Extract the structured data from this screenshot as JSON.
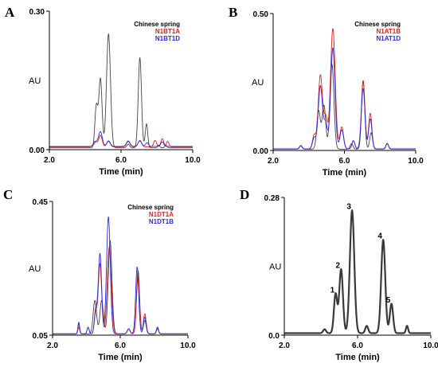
{
  "colors": {
    "Chinese spring": "#444444",
    "N1BT1A": "#e02020",
    "N1BT1D": "#2a2ae0",
    "N1AT1B": "#e02020",
    "N1AT1D": "#2a2ae0",
    "N1DT1A": "#e02020",
    "N1DT1B": "#2a2ae0"
  },
  "chart_data": [
    {
      "panel": "A",
      "type": "line",
      "xlabel": "Time (min)",
      "ylabel": "AU",
      "xlim": [
        2.0,
        10.0
      ],
      "ylim": [
        0.0,
        0.3
      ],
      "xticks": [
        "2.0",
        "6.0",
        "10.0"
      ],
      "yticks": [
        "0.00",
        "0.30"
      ],
      "legend": [
        "Chinese spring",
        "N1BT1A",
        "N1BT1D"
      ],
      "series": [
        {
          "name": "Chinese spring",
          "baseline": 0.004,
          "peaks": [
            [
              4.62,
              0.09,
              0.08
            ],
            [
              4.85,
              0.15,
              0.09
            ],
            [
              5.3,
              0.247,
              0.11
            ],
            [
              6.4,
              0.008,
              0.08
            ],
            [
              7.05,
              0.196,
              0.09
            ],
            [
              7.42,
              0.052,
              0.07
            ],
            [
              8.1,
              0.006,
              0.06
            ],
            [
              8.5,
              0.006,
              0.06
            ]
          ]
        },
        {
          "name": "N1BT1A",
          "baseline": 0.006,
          "peaks": [
            [
              4.55,
              0.012,
              0.1
            ],
            [
              4.85,
              0.025,
              0.1
            ],
            [
              5.3,
              0.012,
              0.1
            ],
            [
              6.4,
              0.012,
              0.1
            ],
            [
              7.05,
              0.014,
              0.1
            ],
            [
              7.9,
              0.014,
              0.08
            ],
            [
              8.3,
              0.018,
              0.08
            ],
            [
              8.6,
              0.012,
              0.07
            ]
          ]
        },
        {
          "name": "N1BT1D",
          "baseline": 0.007,
          "peaks": [
            [
              4.6,
              0.01,
              0.1
            ],
            [
              4.85,
              0.032,
              0.1
            ],
            [
              5.3,
              0.012,
              0.1
            ],
            [
              6.4,
              0.012,
              0.1
            ],
            [
              7.05,
              0.012,
              0.1
            ],
            [
              7.45,
              0.008,
              0.08
            ],
            [
              8.3,
              0.01,
              0.08
            ]
          ]
        }
      ]
    },
    {
      "panel": "B",
      "type": "line",
      "xlabel": "Time (min)",
      "ylabel": "AU",
      "xlim": [
        2.0,
        10.0
      ],
      "ylim": [
        0.0,
        0.5
      ],
      "xticks": [
        "2.0",
        "6.0",
        "10.0"
      ],
      "yticks": [
        "0.00",
        "0.50"
      ],
      "legend": [
        "Chinese spring",
        "N1AT1B",
        "N1AT1D"
      ],
      "series": [
        {
          "name": "Chinese spring",
          "baseline": 0.005,
          "peaks": [
            [
              3.55,
              0.012,
              0.07
            ],
            [
              4.55,
              0.14,
              0.1
            ],
            [
              4.85,
              0.16,
              0.1
            ],
            [
              5.3,
              0.31,
              0.11
            ],
            [
              6.4,
              0.02,
              0.08
            ],
            [
              7.05,
              0.25,
              0.09
            ],
            [
              7.5,
              0.06,
              0.08
            ],
            [
              8.4,
              0.02,
              0.07
            ]
          ]
        },
        {
          "name": "N1AT1B",
          "baseline": 0.006,
          "peaks": [
            [
              3.55,
              0.012,
              0.07
            ],
            [
              4.3,
              0.05,
              0.09
            ],
            [
              4.65,
              0.27,
              0.12
            ],
            [
              4.95,
              0.11,
              0.1
            ],
            [
              5.35,
              0.44,
              0.13
            ],
            [
              5.85,
              0.08,
              0.1
            ],
            [
              6.5,
              0.03,
              0.08
            ],
            [
              7.05,
              0.25,
              0.1
            ],
            [
              7.45,
              0.13,
              0.09
            ],
            [
              8.4,
              0.02,
              0.07
            ]
          ]
        },
        {
          "name": "N1AT1D",
          "baseline": 0.006,
          "peaks": [
            [
              3.55,
              0.012,
              0.07
            ],
            [
              4.3,
              0.04,
              0.09
            ],
            [
              4.65,
              0.23,
              0.12
            ],
            [
              4.95,
              0.09,
              0.1
            ],
            [
              5.35,
              0.37,
              0.12
            ],
            [
              5.85,
              0.07,
              0.1
            ],
            [
              6.5,
              0.03,
              0.08
            ],
            [
              7.05,
              0.22,
              0.1
            ],
            [
              7.45,
              0.11,
              0.09
            ],
            [
              8.4,
              0.02,
              0.07
            ]
          ]
        }
      ]
    },
    {
      "panel": "C",
      "type": "line",
      "xlabel": "Time (min)",
      "ylabel": "AU",
      "xlim": [
        2.0,
        10.0
      ],
      "ylim": [
        0.05,
        0.45
      ],
      "xticks": [
        "2.0",
        "6.0",
        "10.0"
      ],
      "yticks": [
        "0.05",
        "0.45"
      ],
      "legend": [
        "Chinese spring",
        "N1DT1A",
        "N1DT1B"
      ],
      "series": [
        {
          "name": "Chinese spring",
          "baseline": 0.054,
          "peaks": [
            [
              3.55,
              0.03,
              0.05
            ],
            [
              4.5,
              0.1,
              0.1
            ],
            [
              4.9,
              0.1,
              0.1
            ],
            [
              5.4,
              0.28,
              0.11
            ],
            [
              6.5,
              0.015,
              0.08
            ],
            [
              7.05,
              0.19,
              0.09
            ],
            [
              7.45,
              0.04,
              0.08
            ],
            [
              8.2,
              0.015,
              0.06
            ]
          ]
        },
        {
          "name": "N1DT1A",
          "baseline": 0.054,
          "peaks": [
            [
              3.55,
              0.02,
              0.05
            ],
            [
              4.1,
              0.02,
              0.06
            ],
            [
              4.55,
              0.06,
              0.08
            ],
            [
              4.8,
              0.21,
              0.1
            ],
            [
              5.35,
              0.26,
              0.12
            ],
            [
              6.5,
              0.015,
              0.08
            ],
            [
              7.05,
              0.17,
              0.09
            ],
            [
              7.45,
              0.06,
              0.08
            ],
            [
              8.2,
              0.02,
              0.06
            ]
          ]
        },
        {
          "name": "N1DT1B",
          "baseline": 0.054,
          "peaks": [
            [
              3.55,
              0.035,
              0.05
            ],
            [
              4.1,
              0.02,
              0.06
            ],
            [
              4.55,
              0.07,
              0.08
            ],
            [
              4.8,
              0.24,
              0.1
            ],
            [
              5.3,
              0.35,
              0.11
            ],
            [
              6.5,
              0.015,
              0.08
            ],
            [
              7.0,
              0.2,
              0.09
            ],
            [
              7.45,
              0.05,
              0.08
            ],
            [
              8.2,
              0.02,
              0.06
            ]
          ]
        }
      ]
    },
    {
      "panel": "D",
      "type": "line",
      "xlabel": "Time (min)",
      "ylabel": "AU",
      "xlim": [
        2.0,
        10.0
      ],
      "ylim": [
        0.0,
        0.28
      ],
      "xticks": [
        "2.0",
        "6.0",
        "10.0"
      ],
      "yticks": [
        "0.0",
        "0.28"
      ],
      "series": [
        {
          "name": "",
          "baseline": 0.004,
          "peaks": [
            [
              4.2,
              0.008,
              0.08
            ],
            [
              4.8,
              0.08,
              0.09
            ],
            [
              5.1,
              0.13,
              0.1
            ],
            [
              5.7,
              0.25,
              0.12
            ],
            [
              6.5,
              0.015,
              0.08
            ],
            [
              7.4,
              0.19,
              0.11
            ],
            [
              7.85,
              0.06,
              0.09
            ],
            [
              8.7,
              0.015,
              0.06
            ]
          ]
        }
      ],
      "annotations": [
        {
          "text": "1",
          "x": 4.8,
          "y": 0.08
        },
        {
          "text": "2",
          "x": 5.1,
          "y": 0.13
        },
        {
          "text": "3",
          "x": 5.7,
          "y": 0.25
        },
        {
          "text": "4",
          "x": 7.4,
          "y": 0.19
        },
        {
          "text": "5",
          "x": 7.85,
          "y": 0.06
        }
      ]
    }
  ]
}
